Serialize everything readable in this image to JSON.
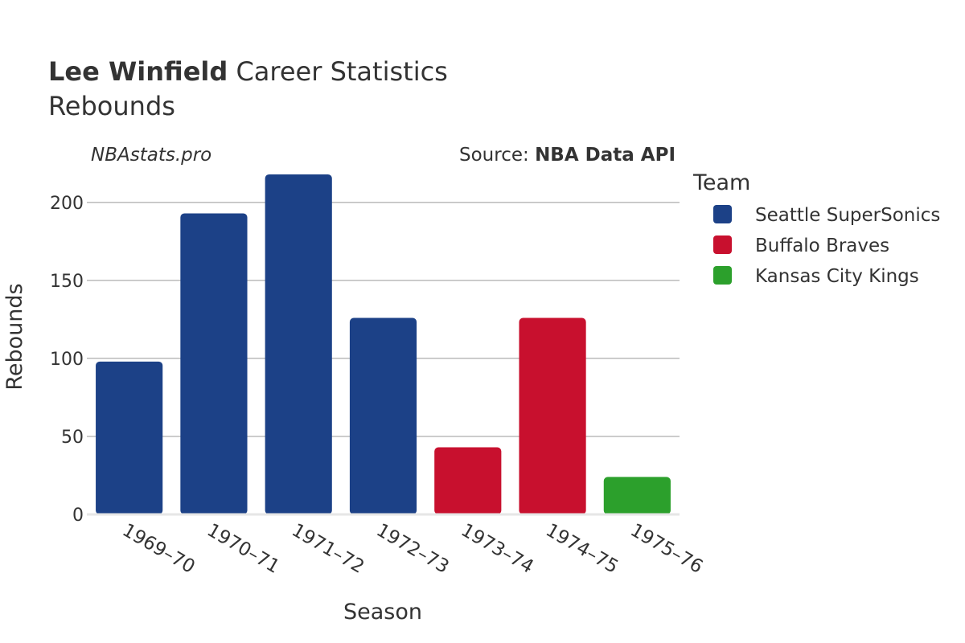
{
  "header": {
    "title_bold": "Lee Winfield",
    "title_rest": " Career Statistics",
    "subtitle": "Rebounds",
    "site": "NBAstats.pro",
    "source_label": "Source: ",
    "source_name": "NBA Data API"
  },
  "legend": {
    "title": "Team",
    "placement": "right"
  },
  "chart_data": {
    "type": "bar",
    "xlabel": "Season",
    "ylabel": "Rebounds",
    "ylim": [
      0,
      219
    ],
    "yticks": [
      0,
      50,
      100,
      150,
      200
    ],
    "grid": true,
    "categories": [
      "1969–70",
      "1970–71",
      "1971–72",
      "1972–73",
      "1973–74",
      "1974–75",
      "1975–76"
    ],
    "values": [
      98,
      193,
      218,
      126,
      43,
      126,
      24
    ],
    "bar_teams": [
      "Seattle SuperSonics",
      "Seattle SuperSonics",
      "Seattle SuperSonics",
      "Seattle SuperSonics",
      "Buffalo Braves",
      "Buffalo Braves",
      "Kansas City Kings"
    ],
    "teams": [
      {
        "name": "Seattle SuperSonics",
        "color": "#1c4187"
      },
      {
        "name": "Buffalo Braves",
        "color": "#c8102e"
      },
      {
        "name": "Kansas City Kings",
        "color": "#2ca02c"
      }
    ]
  }
}
